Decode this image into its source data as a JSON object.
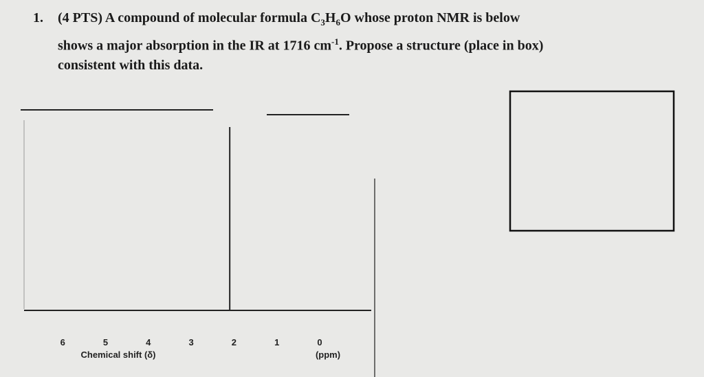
{
  "question": {
    "number": "1.",
    "segments": [
      "(4 PTS) A compound of molecular formula C",
      "3",
      "H",
      "6",
      "O whose proton NMR is below",
      "shows a major absorption in the IR at 1716 cm",
      "-1",
      ". Propose a structure (place in box)",
      "consistent with this data."
    ]
  },
  "spectrum": {
    "ticks": [
      6,
      5,
      4,
      3,
      2,
      1,
      0
    ],
    "unit": "(ppm)",
    "xlabel": "Chemical shift (δ)",
    "peak": 2.1
  }
}
